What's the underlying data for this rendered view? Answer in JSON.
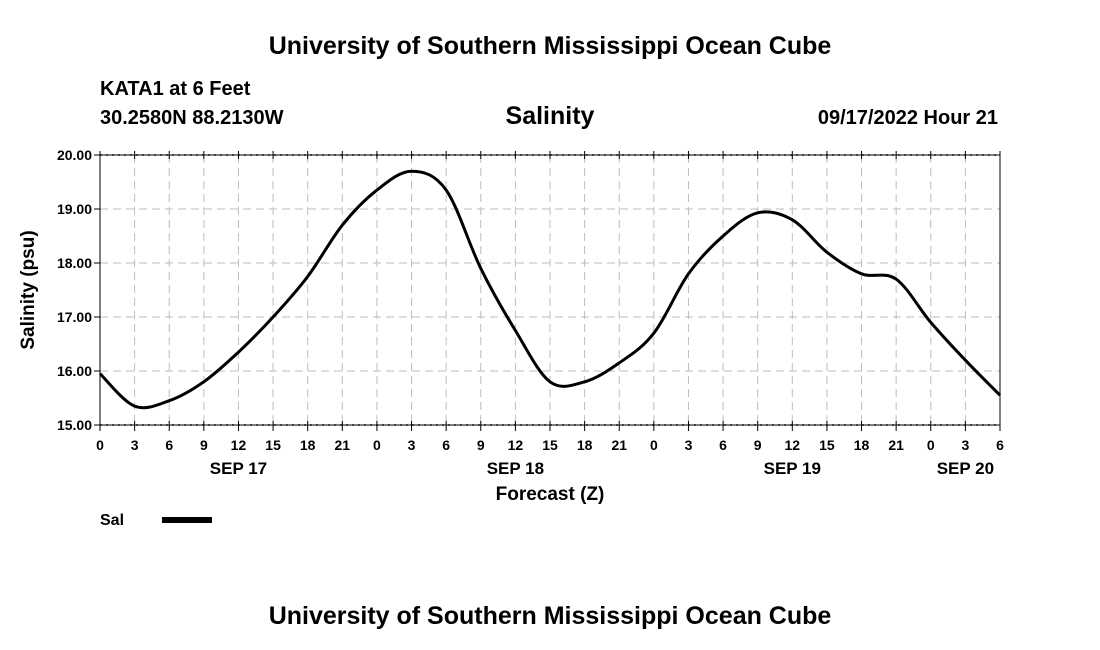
{
  "header": {
    "title": "University of Southern Mississippi Ocean Cube",
    "station": "KATA1 at 6 Feet",
    "coords": "30.2580N  88.2130W",
    "date": "09/17/2022 Hour 21"
  },
  "footer": {
    "title": "University of Southern Mississippi Ocean Cube"
  },
  "chart_data": {
    "type": "line",
    "title": "Salinity",
    "xlabel": "Forecast (Z)",
    "ylabel": "Salinity (psu)",
    "ylim": [
      15,
      20
    ],
    "xlim_hours": [
      0,
      78
    ],
    "grid": true,
    "yticks": [
      "15.00",
      "16.00",
      "17.00",
      "18.00",
      "19.00",
      "20.00"
    ],
    "xtick_labels": [
      "0",
      "3",
      "6",
      "9",
      "12",
      "15",
      "18",
      "21",
      "0",
      "3",
      "6",
      "9",
      "12",
      "15",
      "18",
      "21",
      "0",
      "3",
      "6",
      "9",
      "12",
      "15",
      "18",
      "21",
      "0",
      "3",
      "6"
    ],
    "day_labels": [
      {
        "label": "SEP 17",
        "hour": 12
      },
      {
        "label": "SEP 18",
        "hour": 36
      },
      {
        "label": "SEP 19",
        "hour": 60
      },
      {
        "label": "SEP 20",
        "hour": 75
      }
    ],
    "legend": {
      "label": "Sal",
      "position": "bottom-left"
    },
    "series": [
      {
        "name": "Sal",
        "hours": [
          0,
          3,
          6,
          9,
          12,
          15,
          18,
          21,
          24,
          27,
          30,
          33,
          36,
          39,
          42,
          45,
          48,
          51,
          54,
          57,
          60,
          63,
          66,
          69,
          72,
          75,
          78
        ],
        "values": [
          15.95,
          15.35,
          15.45,
          15.8,
          16.35,
          17.0,
          17.75,
          18.7,
          19.35,
          19.7,
          19.35,
          17.9,
          16.75,
          15.8,
          15.8,
          16.15,
          16.7,
          17.8,
          18.5,
          18.93,
          18.8,
          18.2,
          17.8,
          17.7,
          16.9,
          16.2,
          15.55
        ]
      }
    ]
  }
}
